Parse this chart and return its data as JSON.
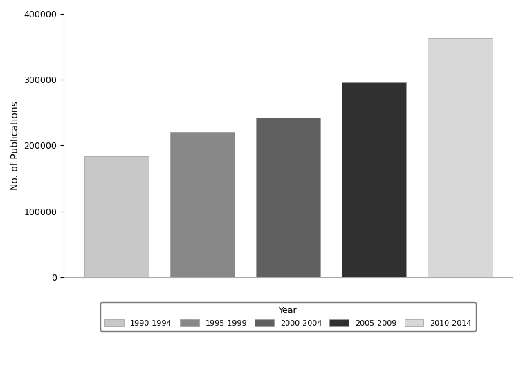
{
  "categories": [
    "1990-1994",
    "1995-1999",
    "2000-2004",
    "2005-2009",
    "2010-2014"
  ],
  "values": [
    184000,
    220000,
    242000,
    296000,
    363000
  ],
  "bar_colors": [
    "#c8c8c8",
    "#888888",
    "#606060",
    "#303030",
    "#d8d8d8"
  ],
  "ylabel": "No. of Publications",
  "ylim": [
    0,
    400000
  ],
  "yticks": [
    0,
    100000,
    200000,
    300000,
    400000
  ],
  "legend_label": "Year",
  "background_color": "#ffffff",
  "edge_color": "#aaaaaa"
}
